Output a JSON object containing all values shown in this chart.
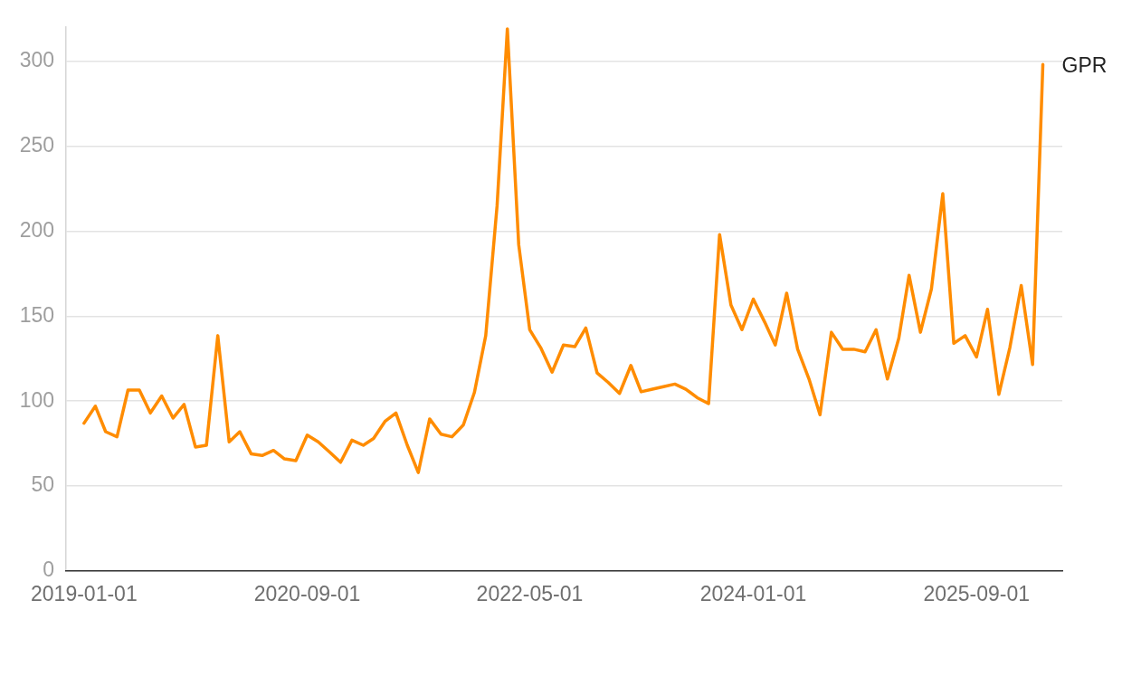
{
  "chart_data": {
    "type": "line",
    "x": [
      "2019-01",
      "2019-02",
      "2019-03",
      "2019-04",
      "2019-05",
      "2019-06",
      "2019-07",
      "2019-08",
      "2019-09",
      "2019-10",
      "2019-11",
      "2019-12",
      "2020-01",
      "2020-02",
      "2020-03",
      "2020-04",
      "2020-05",
      "2020-06",
      "2020-07",
      "2020-08",
      "2020-09",
      "2020-10",
      "2020-11",
      "2020-12",
      "2021-01",
      "2021-02",
      "2021-03",
      "2021-04",
      "2021-05",
      "2021-06",
      "2021-07",
      "2021-08",
      "2021-09",
      "2021-10",
      "2021-11",
      "2021-12",
      "2022-01",
      "2022-02",
      "2022-03",
      "2022-04",
      "2022-05",
      "2022-06",
      "2022-07",
      "2022-08",
      "2022-09",
      "2022-10",
      "2022-11",
      "2022-12",
      "2023-01",
      "2023-02",
      "2023-03",
      "2023-04",
      "2023-05",
      "2023-06",
      "2023-07",
      "2023-08",
      "2023-09",
      "2023-10",
      "2023-11",
      "2023-12",
      "2024-01",
      "2024-02",
      "2024-03",
      "2024-04",
      "2024-05",
      "2024-06",
      "2024-07",
      "2024-08",
      "2024-09",
      "2024-10",
      "2024-11",
      "2024-12",
      "2025-01",
      "2025-02",
      "2025-03",
      "2025-04",
      "2025-05",
      "2025-06",
      "2025-07",
      "2025-08",
      "2025-09",
      "2025-10",
      "2025-11",
      "2025-12",
      "2026-01",
      "2026-02",
      "2026-03"
    ],
    "series": [
      {
        "name": "GPR",
        "color": "#ff8c00",
        "values": [
          87,
          97,
          82,
          79,
          106.5,
          106.5,
          93,
          103,
          90,
          98,
          73,
          74,
          138.5,
          76,
          82,
          69,
          68,
          71,
          66,
          65,
          80,
          76,
          70,
          64,
          77,
          74,
          78,
          88,
          93,
          74,
          58,
          89.5,
          80.5,
          79,
          86,
          105,
          138.5,
          215,
          319,
          192,
          142,
          131,
          117,
          133,
          132,
          143,
          116.5,
          111,
          104.5,
          121,
          105.5,
          107,
          108.5,
          110,
          107,
          102,
          98.5,
          198,
          156.5,
          142,
          160,
          146.5,
          133,
          163.5,
          130.5,
          113,
          92,
          140.5,
          130.5,
          130.5,
          129,
          142,
          113,
          137,
          174,
          140.5,
          166,
          222,
          134,
          138.5,
          126,
          154,
          104,
          131.5,
          168,
          121.5,
          298
        ]
      }
    ],
    "xlim": [
      "2018-11-13",
      "2026-04-23"
    ],
    "xticks": [
      "2019-01-01",
      "2020-09-01",
      "2022-05-01",
      "2024-01-01",
      "2025-09-01"
    ],
    "ylim": [
      0,
      320
    ],
    "yticks": [
      0,
      50,
      100,
      150,
      200,
      250,
      300
    ],
    "grid": "y",
    "marker": "none",
    "line_style": "solid"
  }
}
